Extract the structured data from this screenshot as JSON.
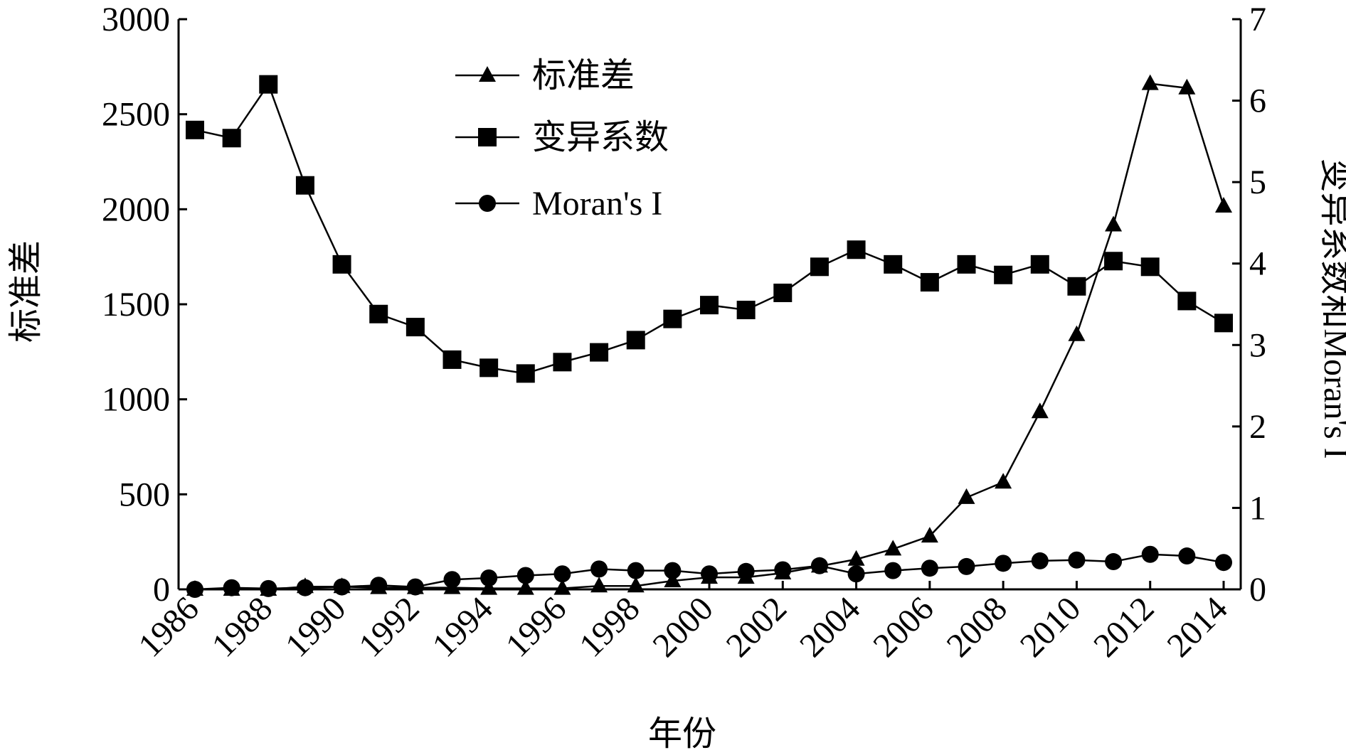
{
  "chart_data": {
    "type": "line",
    "x_label": "年份",
    "y_label": "标准差",
    "y2_label": "变异系数和Moran's I",
    "categories": [
      "1986",
      null,
      "1988",
      null,
      "1990",
      null,
      "1992",
      null,
      "1994",
      null,
      "1996",
      null,
      "1998",
      null,
      "2000",
      null,
      "2002",
      null,
      "2004",
      null,
      "2006",
      null,
      "2008",
      null,
      "2010",
      null,
      "2012",
      null,
      "2014"
    ],
    "series": [
      {
        "name": "标准差",
        "marker": "triangle",
        "color": "#000000",
        "axis": "y",
        "values": [
          0,
          0,
          0,
          14,
          14,
          9,
          9,
          9,
          5,
          5,
          5,
          18,
          18,
          45,
          63,
          63,
          86,
          122,
          158,
          212,
          280,
          483,
          564,
          934,
          1340,
          1917,
          2661,
          2638,
          2016
        ]
      },
      {
        "name": "变异系数",
        "marker": "square",
        "color": "#000000",
        "axis": "y2",
        "values": [
          5.64,
          5.54,
          6.2,
          4.96,
          3.99,
          3.38,
          3.22,
          2.82,
          2.72,
          2.65,
          2.79,
          2.91,
          3.06,
          3.32,
          3.49,
          3.43,
          3.64,
          3.96,
          4.17,
          3.99,
          3.77,
          3.99,
          3.86,
          3.99,
          3.72,
          4.03,
          3.96,
          3.54,
          3.27
        ]
      },
      {
        "name": "Moran's I",
        "marker": "circle",
        "color": "#000000",
        "axis": "y2",
        "values": [
          0,
          0.02,
          0.01,
          0.02,
          0.03,
          0.05,
          0.03,
          0.12,
          0.14,
          0.17,
          0.19,
          0.25,
          0.23,
          0.23,
          0.19,
          0.22,
          0.24,
          0.29,
          0.19,
          0.23,
          0.26,
          0.28,
          0.32,
          0.35,
          0.36,
          0.34,
          0.43,
          0.41,
          0.33
        ]
      }
    ],
    "ylim": [
      0,
      3000
    ],
    "yticks": [
      0,
      500,
      1000,
      1500,
      2000,
      2500,
      3000
    ],
    "y2lim": [
      0,
      7
    ],
    "y2ticks": [
      0,
      1,
      2,
      3,
      4,
      5,
      6,
      7
    ],
    "legend": "upper center"
  }
}
